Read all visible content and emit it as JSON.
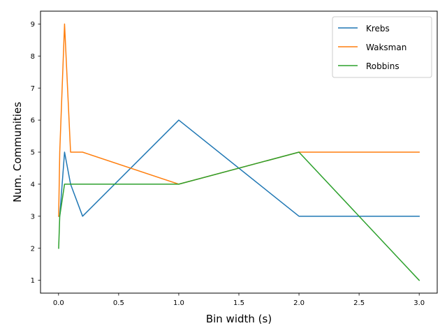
{
  "chart_data": {
    "type": "line",
    "title": "",
    "xlabel": "Bin width (s)",
    "ylabel": "Num. Communities",
    "xlim": [
      -0.15,
      3.15
    ],
    "ylim": [
      0.6,
      9.4
    ],
    "xticks": [
      0.0,
      0.5,
      1.0,
      1.5,
      2.0,
      2.5,
      3.0
    ],
    "xtick_labels": [
      "0.0",
      "0.5",
      "1.0",
      "1.5",
      "2.0",
      "2.5",
      "3.0"
    ],
    "yticks": [
      1,
      2,
      3,
      4,
      5,
      6,
      7,
      8,
      9
    ],
    "ytick_labels": [
      "1",
      "2",
      "3",
      "4",
      "5",
      "6",
      "7",
      "8",
      "9"
    ],
    "grid": false,
    "legend_position": "top-right",
    "series": [
      {
        "name": "Krebs",
        "color": "#1f77b4",
        "points": [
          [
            0.001,
            3
          ],
          [
            0.01,
            3
          ],
          [
            0.05,
            5
          ],
          [
            0.1,
            4
          ],
          [
            0.2,
            3
          ],
          [
            1.0,
            6
          ],
          [
            2.0,
            3
          ],
          [
            3.0,
            3
          ]
        ]
      },
      {
        "name": "Waksman",
        "color": "#ff7f0e",
        "points": [
          [
            0.001,
            3
          ],
          [
            0.01,
            5
          ],
          [
            0.05,
            9
          ],
          [
            0.1,
            5
          ],
          [
            0.2,
            5
          ],
          [
            1.0,
            4
          ],
          [
            2.0,
            5
          ],
          [
            3.0,
            5
          ]
        ]
      },
      {
        "name": "Robbins",
        "color": "#2ca02c",
        "points": [
          [
            0.001,
            2
          ],
          [
            0.01,
            3
          ],
          [
            0.05,
            4
          ],
          [
            0.1,
            4
          ],
          [
            0.2,
            4
          ],
          [
            1.0,
            4
          ],
          [
            2.0,
            5
          ],
          [
            3.0,
            1
          ]
        ]
      }
    ]
  }
}
